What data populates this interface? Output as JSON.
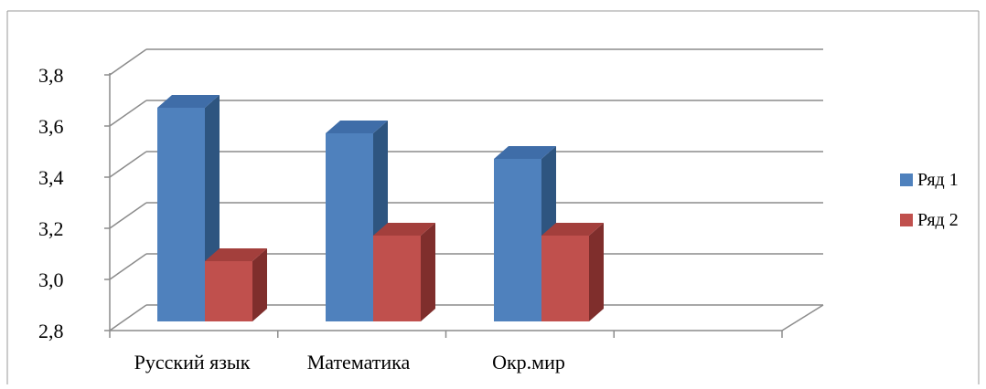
{
  "chart_data": {
    "type": "bar",
    "categories": [
      "Русский язык",
      "Математика",
      "Окр.мир",
      ""
    ],
    "series": [
      {
        "name": "Ряд 1",
        "values": [
          3.7,
          3.6,
          3.5,
          null
        ],
        "color": "#4F81BD",
        "side_color": "#2E5580",
        "top_color": "#3F6DA8"
      },
      {
        "name": "Ряд 2",
        "values": [
          3.1,
          3.2,
          3.2,
          null
        ],
        "color": "#C0504D",
        "side_color": "#7F2E2C",
        "top_color": "#A33F3C"
      }
    ],
    "ylim": [
      2.8,
      3.8
    ],
    "yticks": [
      "2,8",
      "3,0",
      "3,2",
      "3,4",
      "3,6",
      "3,8"
    ],
    "ytick_values": [
      2.8,
      3.0,
      3.2,
      3.4,
      3.6,
      3.8
    ],
    "grid": true,
    "legend_position": "right",
    "three_d": true
  }
}
